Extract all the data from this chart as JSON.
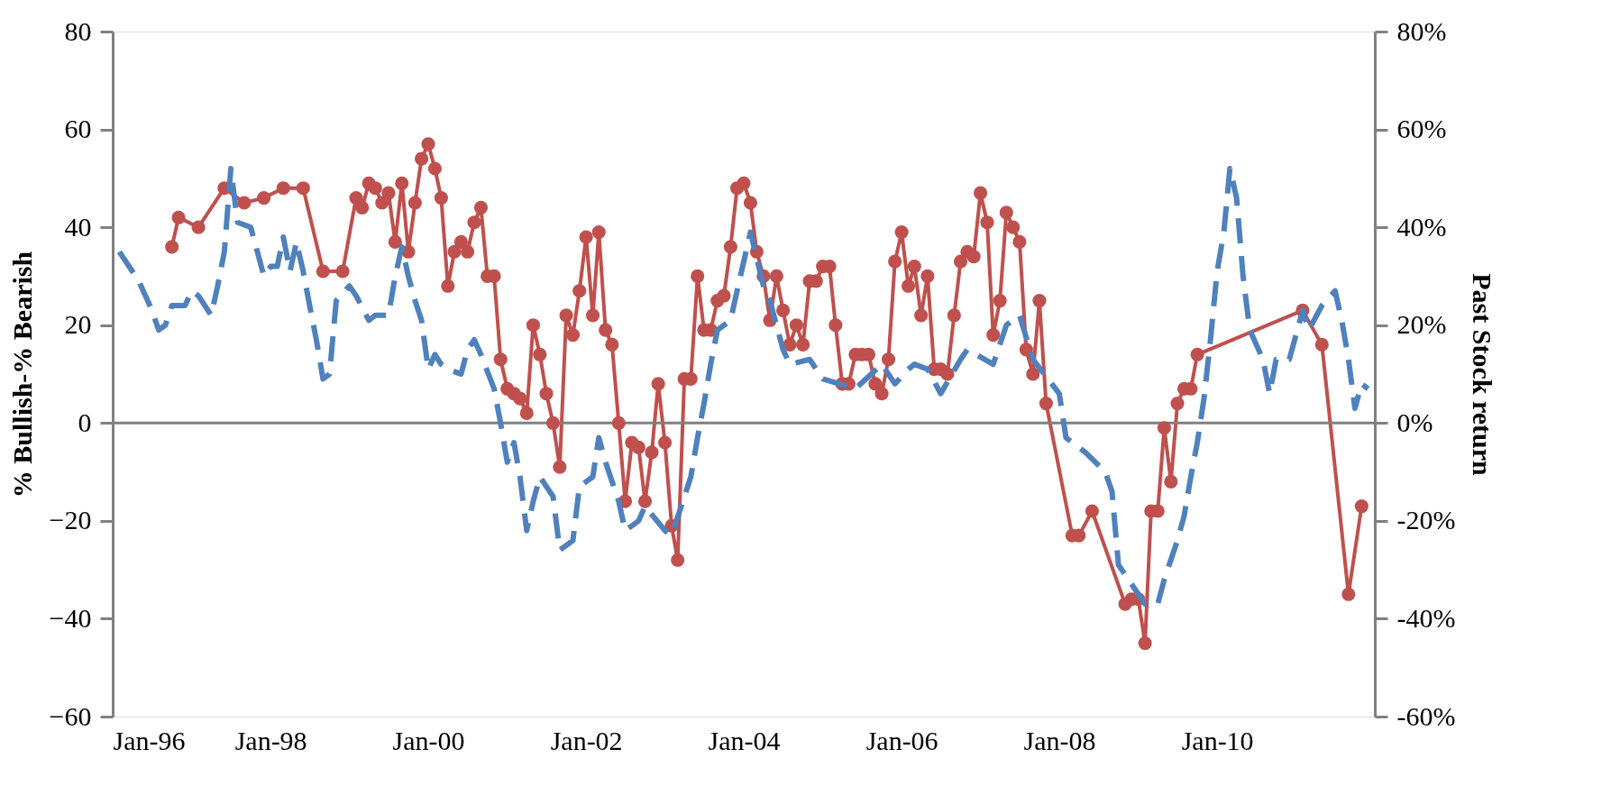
{
  "chart_data": {
    "type": "line",
    "ylabel": "% Bullish-% Bearish",
    "y2label": "Past Stock return",
    "xlim": [
      "1996-01",
      "2012-01"
    ],
    "xticks": [
      {
        "value": "1996-01",
        "label": "Jan-96"
      },
      {
        "value": "1998-01",
        "label": "Jan-98"
      },
      {
        "value": "2000-01",
        "label": "Jan-00"
      },
      {
        "value": "2002-01",
        "label": "Jan-02"
      },
      {
        "value": "2004-01",
        "label": "Jan-04"
      },
      {
        "value": "2006-01",
        "label": "Jan-06"
      },
      {
        "value": "2008-01",
        "label": "Jan-08"
      },
      {
        "value": "2010-01",
        "label": "Jan-10"
      }
    ],
    "ylim": [
      -60,
      80
    ],
    "yticks": [
      -60,
      -40,
      -20,
      0,
      20,
      40,
      60,
      80
    ],
    "y2lim": [
      -60,
      80
    ],
    "y2ticks": [
      {
        "value": -60,
        "label": "-60%"
      },
      {
        "value": -40,
        "label": "-40%"
      },
      {
        "value": -20,
        "label": "-20%"
      },
      {
        "value": 0,
        "label": "0%"
      },
      {
        "value": 20,
        "label": "20%"
      },
      {
        "value": 40,
        "label": "40%"
      },
      {
        "value": 60,
        "label": "60%"
      },
      {
        "value": 80,
        "label": "80%"
      }
    ],
    "ref_lines": [
      {
        "axis": "y",
        "value": 0,
        "color": "#808080"
      }
    ],
    "series": [
      {
        "color": "#c0504d",
        "marker": "circle",
        "line_style": "solid",
        "x": [
          "1996-10",
          "1996-11",
          "1997-02",
          "1997-06",
          "1997-09",
          "1997-12",
          "1998-03",
          "1998-06",
          "1998-09",
          "1998-12",
          "1999-02",
          "1999-03",
          "1999-04",
          "1999-05",
          "1999-06",
          "1999-07",
          "1999-08",
          "1999-09",
          "1999-10",
          "1999-11",
          "1999-12",
          "2000-01",
          "2000-02",
          "2000-03",
          "2000-04",
          "2000-05",
          "2000-06",
          "2000-07",
          "2000-08",
          "2000-09",
          "2000-10",
          "2000-11",
          "2000-12",
          "2001-01",
          "2001-02",
          "2001-03",
          "2001-04",
          "2001-05",
          "2001-06",
          "2001-07",
          "2001-08",
          "2001-09",
          "2001-10",
          "2001-11",
          "2001-12",
          "2002-01",
          "2002-02",
          "2002-03",
          "2002-04",
          "2002-05",
          "2002-06",
          "2002-07",
          "2002-08",
          "2002-09",
          "2002-10",
          "2002-11",
          "2002-12",
          "2003-01",
          "2003-02",
          "2003-03",
          "2003-04",
          "2003-05",
          "2003-06",
          "2003-07",
          "2003-08",
          "2003-09",
          "2003-10",
          "2003-11",
          "2003-12",
          "2004-01",
          "2004-02",
          "2004-03",
          "2004-04",
          "2004-05",
          "2004-06",
          "2004-07",
          "2004-08",
          "2004-09",
          "2004-10",
          "2004-11",
          "2004-12",
          "2005-01",
          "2005-02",
          "2005-03",
          "2005-04",
          "2005-05",
          "2005-06",
          "2005-07",
          "2005-08",
          "2005-09",
          "2005-10",
          "2005-11",
          "2005-12",
          "2006-01",
          "2006-02",
          "2006-03",
          "2006-04",
          "2006-05",
          "2006-06",
          "2006-07",
          "2006-08",
          "2006-09",
          "2006-10",
          "2006-11",
          "2006-12",
          "2007-01",
          "2007-02",
          "2007-03",
          "2007-04",
          "2007-05",
          "2007-06",
          "2007-07",
          "2007-08",
          "2007-09",
          "2007-10",
          "2007-11",
          "2008-03",
          "2008-04",
          "2008-06",
          "2008-11",
          "2008-12",
          "2009-01",
          "2009-02",
          "2009-03",
          "2009-04",
          "2009-05",
          "2009-06",
          "2009-07",
          "2009-08",
          "2009-09",
          "2009-10",
          "2011-02",
          "2011-05",
          "2011-09",
          "2011-11"
        ],
        "values": [
          36,
          42,
          40,
          48,
          45,
          46,
          48,
          48,
          31,
          31,
          46,
          44,
          49,
          48,
          45,
          47,
          37,
          49,
          35,
          45,
          54,
          57,
          52,
          46,
          28,
          35,
          37,
          35,
          41,
          44,
          30,
          30,
          13,
          7,
          6,
          5,
          2,
          20,
          14,
          6,
          0,
          -9,
          22,
          18,
          27,
          38,
          22,
          39,
          19,
          16,
          0,
          -16,
          -4,
          -5,
          -16,
          -6,
          8,
          -4,
          -21,
          -28,
          9,
          9,
          30,
          19,
          19,
          25,
          26,
          36,
          48,
          49,
          45,
          35,
          30,
          21,
          30,
          23,
          16,
          20,
          16,
          29,
          29,
          32,
          32,
          20,
          8,
          8,
          14,
          14,
          14,
          8,
          6,
          13,
          33,
          39,
          28,
          32,
          22,
          30,
          11,
          11,
          10,
          22,
          33,
          35,
          34,
          47,
          41,
          18,
          25,
          43,
          40,
          37,
          15,
          10,
          25,
          4,
          -23,
          -23,
          -18,
          -37,
          -36,
          -36,
          -45,
          -18,
          -18,
          -1,
          -12,
          4,
          7,
          7,
          14,
          23,
          16,
          -35,
          -17
        ]
      },
      {
        "axis": "y2",
        "color": "#4f81bd",
        "marker": "none",
        "line_style": "dashed",
        "x": [
          "1996-02",
          "1996-04",
          "1996-05",
          "1996-06",
          "1996-07",
          "1996-08",
          "1996-09",
          "1996-10",
          "1996-12",
          "1997-01",
          "1997-02",
          "1997-04",
          "1997-05",
          "1997-06",
          "1997-07",
          "1997-08",
          "1997-10",
          "1997-11",
          "1997-12",
          "1998-01",
          "1998-02",
          "1998-03",
          "1998-04",
          "1998-05",
          "1998-06",
          "1998-07",
          "1998-08",
          "1998-09",
          "1998-10",
          "1998-11",
          "1999-01",
          "1999-02",
          "1999-04",
          "1999-05",
          "1999-07",
          "1999-08",
          "1999-09",
          "1999-10",
          "1999-11",
          "1999-12",
          "2000-01",
          "2000-02",
          "2000-03",
          "2000-04",
          "2000-06",
          "2000-07",
          "2000-08",
          "2000-09",
          "2000-11",
          "2000-12",
          "2001-01",
          "2001-02",
          "2001-03",
          "2001-04",
          "2001-05",
          "2001-06",
          "2001-08",
          "2001-09",
          "2001-11",
          "2001-12",
          "2002-01",
          "2002-02",
          "2002-03",
          "2002-04",
          "2002-06",
          "2002-07",
          "2002-09",
          "2002-10",
          "2003-01",
          "2003-02",
          "2003-05",
          "2003-06",
          "2003-07",
          "2003-08",
          "2003-09",
          "2003-11",
          "2003-12",
          "2004-02",
          "2004-04",
          "2004-05",
          "2004-07",
          "2004-08",
          "2004-11",
          "2005-01",
          "2005-06",
          "2005-10",
          "2005-12",
          "2006-02",
          "2006-03",
          "2006-05",
          "2006-07",
          "2006-10",
          "2006-11",
          "2007-03",
          "2007-05",
          "2007-07",
          "2007-09",
          "2008-01",
          "2008-02",
          "2008-05",
          "2008-08",
          "2008-09",
          "2008-10",
          "2009-02",
          "2009-04",
          "2009-05",
          "2009-07",
          "2009-08",
          "2009-09",
          "2009-10",
          "2009-11",
          "2009-12",
          "2010-01",
          "2010-02",
          "2010-03",
          "2010-04",
          "2010-05",
          "2010-06",
          "2010-08",
          "2010-09",
          "2010-10",
          "2010-12",
          "2011-02",
          "2011-03",
          "2011-05",
          "2011-07",
          "2011-08",
          "2011-09",
          "2011-10",
          "2011-11",
          "2011-12"
        ],
        "values": [
          35,
          31,
          29,
          26,
          23,
          19,
          20,
          24,
          24,
          27,
          26,
          22,
          28,
          35,
          52,
          41,
          40,
          35,
          30,
          32,
          32,
          38,
          31,
          37,
          31,
          24,
          17,
          9,
          10,
          25,
          28,
          26,
          21,
          22,
          22,
          30,
          36,
          30,
          25,
          21,
          11,
          14,
          12,
          11,
          10,
          15,
          17,
          14,
          7,
          0,
          -8,
          -4,
          -11,
          -22,
          -16,
          -11,
          -15,
          -26,
          -24,
          -13,
          -12,
          -11,
          -3,
          -8,
          -16,
          -22,
          -20,
          -17,
          -22,
          -23,
          -11,
          -3,
          4,
          12,
          19,
          21,
          27,
          39,
          28,
          25,
          15,
          12,
          13,
          9,
          7,
          12,
          8,
          11,
          12,
          11,
          6,
          13,
          15,
          12,
          20,
          22,
          13,
          6,
          -3,
          -6,
          -10,
          -14,
          -29,
          -37,
          -37,
          -32,
          -24,
          -19,
          -11,
          -4,
          5,
          17,
          31,
          39,
          52,
          46,
          30,
          19,
          13,
          6,
          13,
          13,
          23,
          19,
          24,
          27,
          21,
          13,
          3,
          8,
          7
        ]
      }
    ]
  }
}
